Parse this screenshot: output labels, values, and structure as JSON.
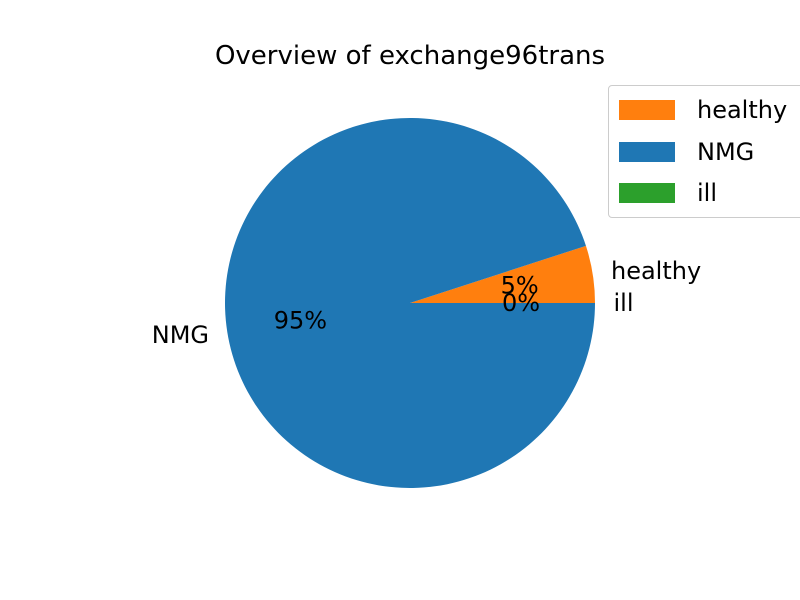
{
  "chart_data": {
    "type": "pie",
    "title": "Overview of exchange96trans",
    "slices": [
      {
        "label": "healthy",
        "value": 5,
        "percent_label": "5%",
        "color": "#ff7f0e"
      },
      {
        "label": "NMG",
        "value": 95,
        "percent_label": "95%",
        "color": "#1f77b4"
      },
      {
        "label": "ill",
        "value": 0,
        "percent_label": "0%",
        "color": "#2ca02c"
      }
    ],
    "start_angle_deg": 0,
    "direction": "counterclockwise",
    "legend": {
      "position": "top-right",
      "entries": [
        {
          "label": "healthy",
          "color": "#ff7f0e"
        },
        {
          "label": "NMG",
          "color": "#1f77b4"
        },
        {
          "label": "ill",
          "color": "#2ca02c"
        }
      ]
    }
  }
}
